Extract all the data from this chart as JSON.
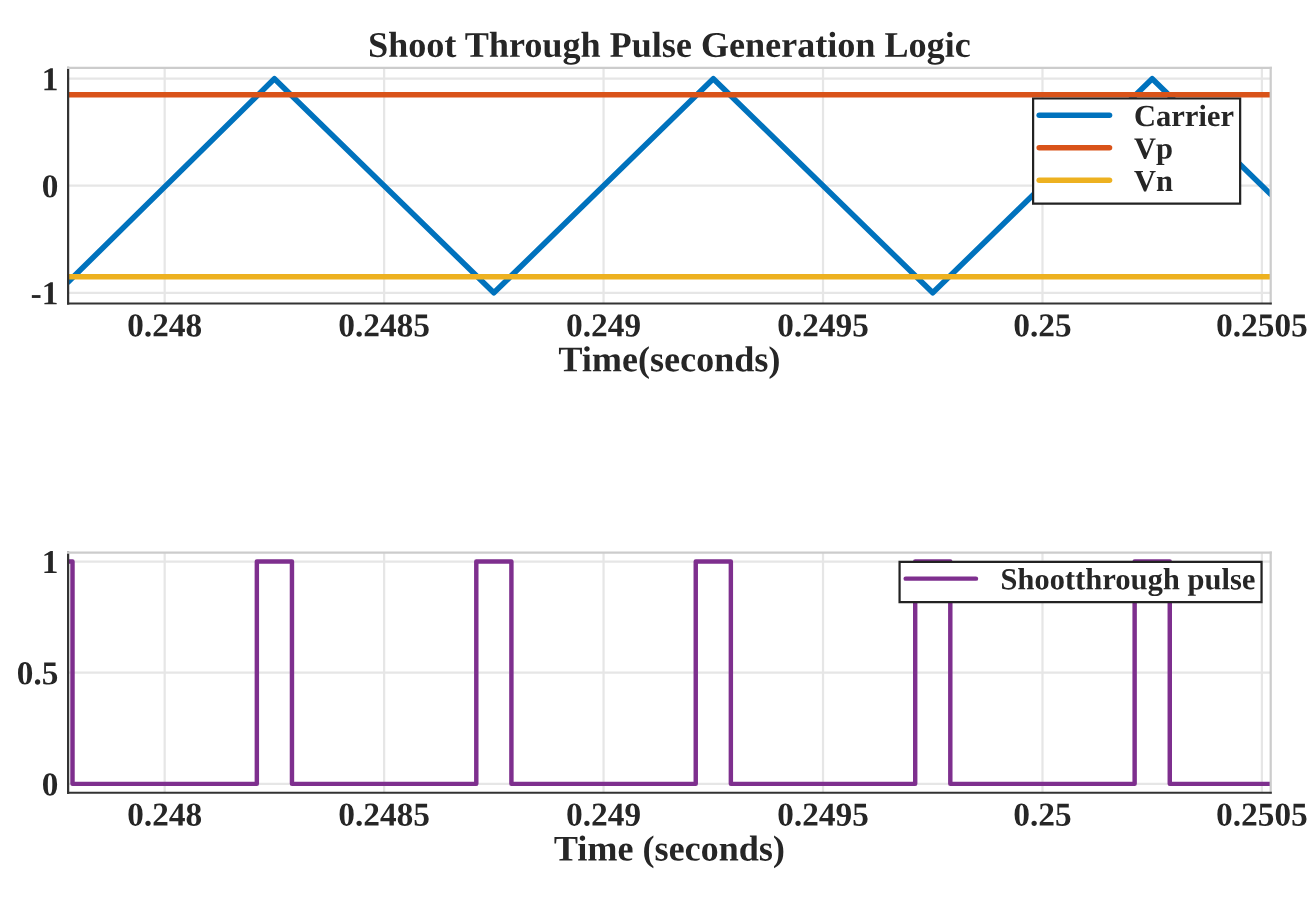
{
  "chart_data": [
    {
      "type": "line",
      "title": "Shoot Through Pulse Generation Logic",
      "xlabel": "Time(seconds)",
      "xlim": [
        0.24778,
        0.25052
      ],
      "xticks": [
        0.248,
        0.2485,
        0.249,
        0.2495,
        0.25,
        0.2505
      ],
      "ylim": [
        -1.1,
        1.1
      ],
      "yticks": [
        -1,
        0,
        1
      ],
      "grid": true,
      "legend": "top right",
      "line_style": "solid",
      "marker": "none",
      "series": [
        {
          "name": "Carrier",
          "color": "#0072bd",
          "x": [
            0.24778,
            0.24825,
            0.24875,
            0.24925,
            0.24975,
            0.25025,
            0.25052
          ],
          "values": [
            -0.9,
            1,
            -1,
            1,
            -1,
            1,
            -0.08
          ]
        },
        {
          "name": "Vp",
          "color": "#d95319",
          "x": [
            0.24778,
            0.25052
          ],
          "values": [
            0.85,
            0.85
          ]
        },
        {
          "name": "Vn",
          "color": "#edb120",
          "x": [
            0.24778,
            0.25052
          ],
          "values": [
            -0.85,
            -0.85
          ]
        }
      ]
    },
    {
      "type": "line",
      "xlabel": "Time (seconds)",
      "xlim": [
        0.24778,
        0.25052
      ],
      "xticks": [
        0.248,
        0.2485,
        0.249,
        0.2495,
        0.25,
        0.2505
      ],
      "ylim": [
        -0.04,
        1.04
      ],
      "yticks": [
        0,
        0.5,
        1
      ],
      "grid": true,
      "legend": "top right",
      "line_style": "solid",
      "marker": "none",
      "series": [
        {
          "name": "Shootthrough pulse",
          "color": "#7e2f8e",
          "x": [
            0.24778,
            0.24779,
            0.24779,
            0.24821,
            0.24821,
            0.24829,
            0.24829,
            0.24871,
            0.24871,
            0.24879,
            0.24879,
            0.24921,
            0.24921,
            0.24929,
            0.24929,
            0.24971,
            0.24971,
            0.24979,
            0.24979,
            0.25021,
            0.25021,
            0.25029,
            0.25029,
            0.25052
          ],
          "values": [
            1,
            1,
            0,
            0,
            1,
            1,
            0,
            0,
            1,
            1,
            0,
            0,
            1,
            1,
            0,
            0,
            1,
            1,
            0,
            0,
            1,
            1,
            0,
            0
          ]
        }
      ]
    }
  ]
}
